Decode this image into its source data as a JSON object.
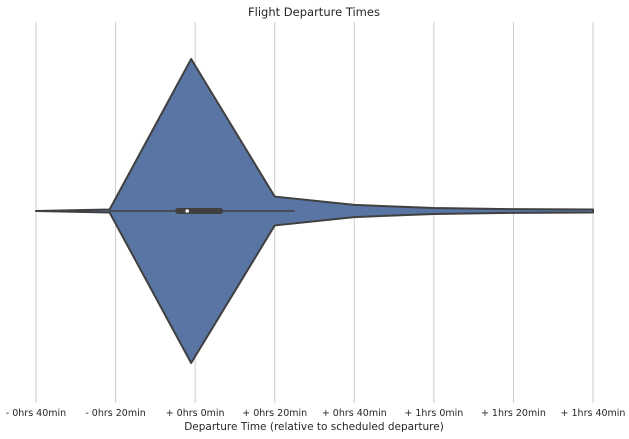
{
  "chart_data": {
    "type": "violin",
    "title": "Flight Departure Times",
    "xlabel": "Departure Time (relative to scheduled departure)",
    "ylabel": "",
    "x_unit": "minutes relative to scheduled departure",
    "xlim": [
      -40,
      100
    ],
    "x_ticks": [
      {
        "value": -40,
        "label": "- 0hrs 40min"
      },
      {
        "value": -20,
        "label": "- 0hrs 20min"
      },
      {
        "value": 0,
        "label": "+ 0hrs  0min"
      },
      {
        "value": 20,
        "label": "+ 0hrs 20min"
      },
      {
        "value": 40,
        "label": "+ 0hrs 40min"
      },
      {
        "value": 60,
        "label": "+ 1hrs  0min"
      },
      {
        "value": 80,
        "label": "+ 1hrs 20min"
      },
      {
        "value": 100,
        "label": "+ 1hrs 40min"
      }
    ],
    "grid": "vertical",
    "orientation": "horizontal",
    "density_profile": [
      {
        "x": -40,
        "density": 0.0
      },
      {
        "x": -21.5,
        "density": 0.01
      },
      {
        "x": -1,
        "density": 1.0
      },
      {
        "x": 20,
        "density": 0.095
      },
      {
        "x": 40,
        "density": 0.04
      },
      {
        "x": 60,
        "density": 0.02
      },
      {
        "x": 80,
        "density": 0.012
      },
      {
        "x": 100,
        "density": 0.01
      }
    ],
    "box": {
      "whisker_low": -21.5,
      "q1": -5,
      "median": -2,
      "q3": 7,
      "whisker_high": 25
    },
    "colors": {
      "fill": "#5975a4",
      "edge": "#404040",
      "grid": "#cccccc",
      "median_marker": "#ffffff"
    }
  }
}
